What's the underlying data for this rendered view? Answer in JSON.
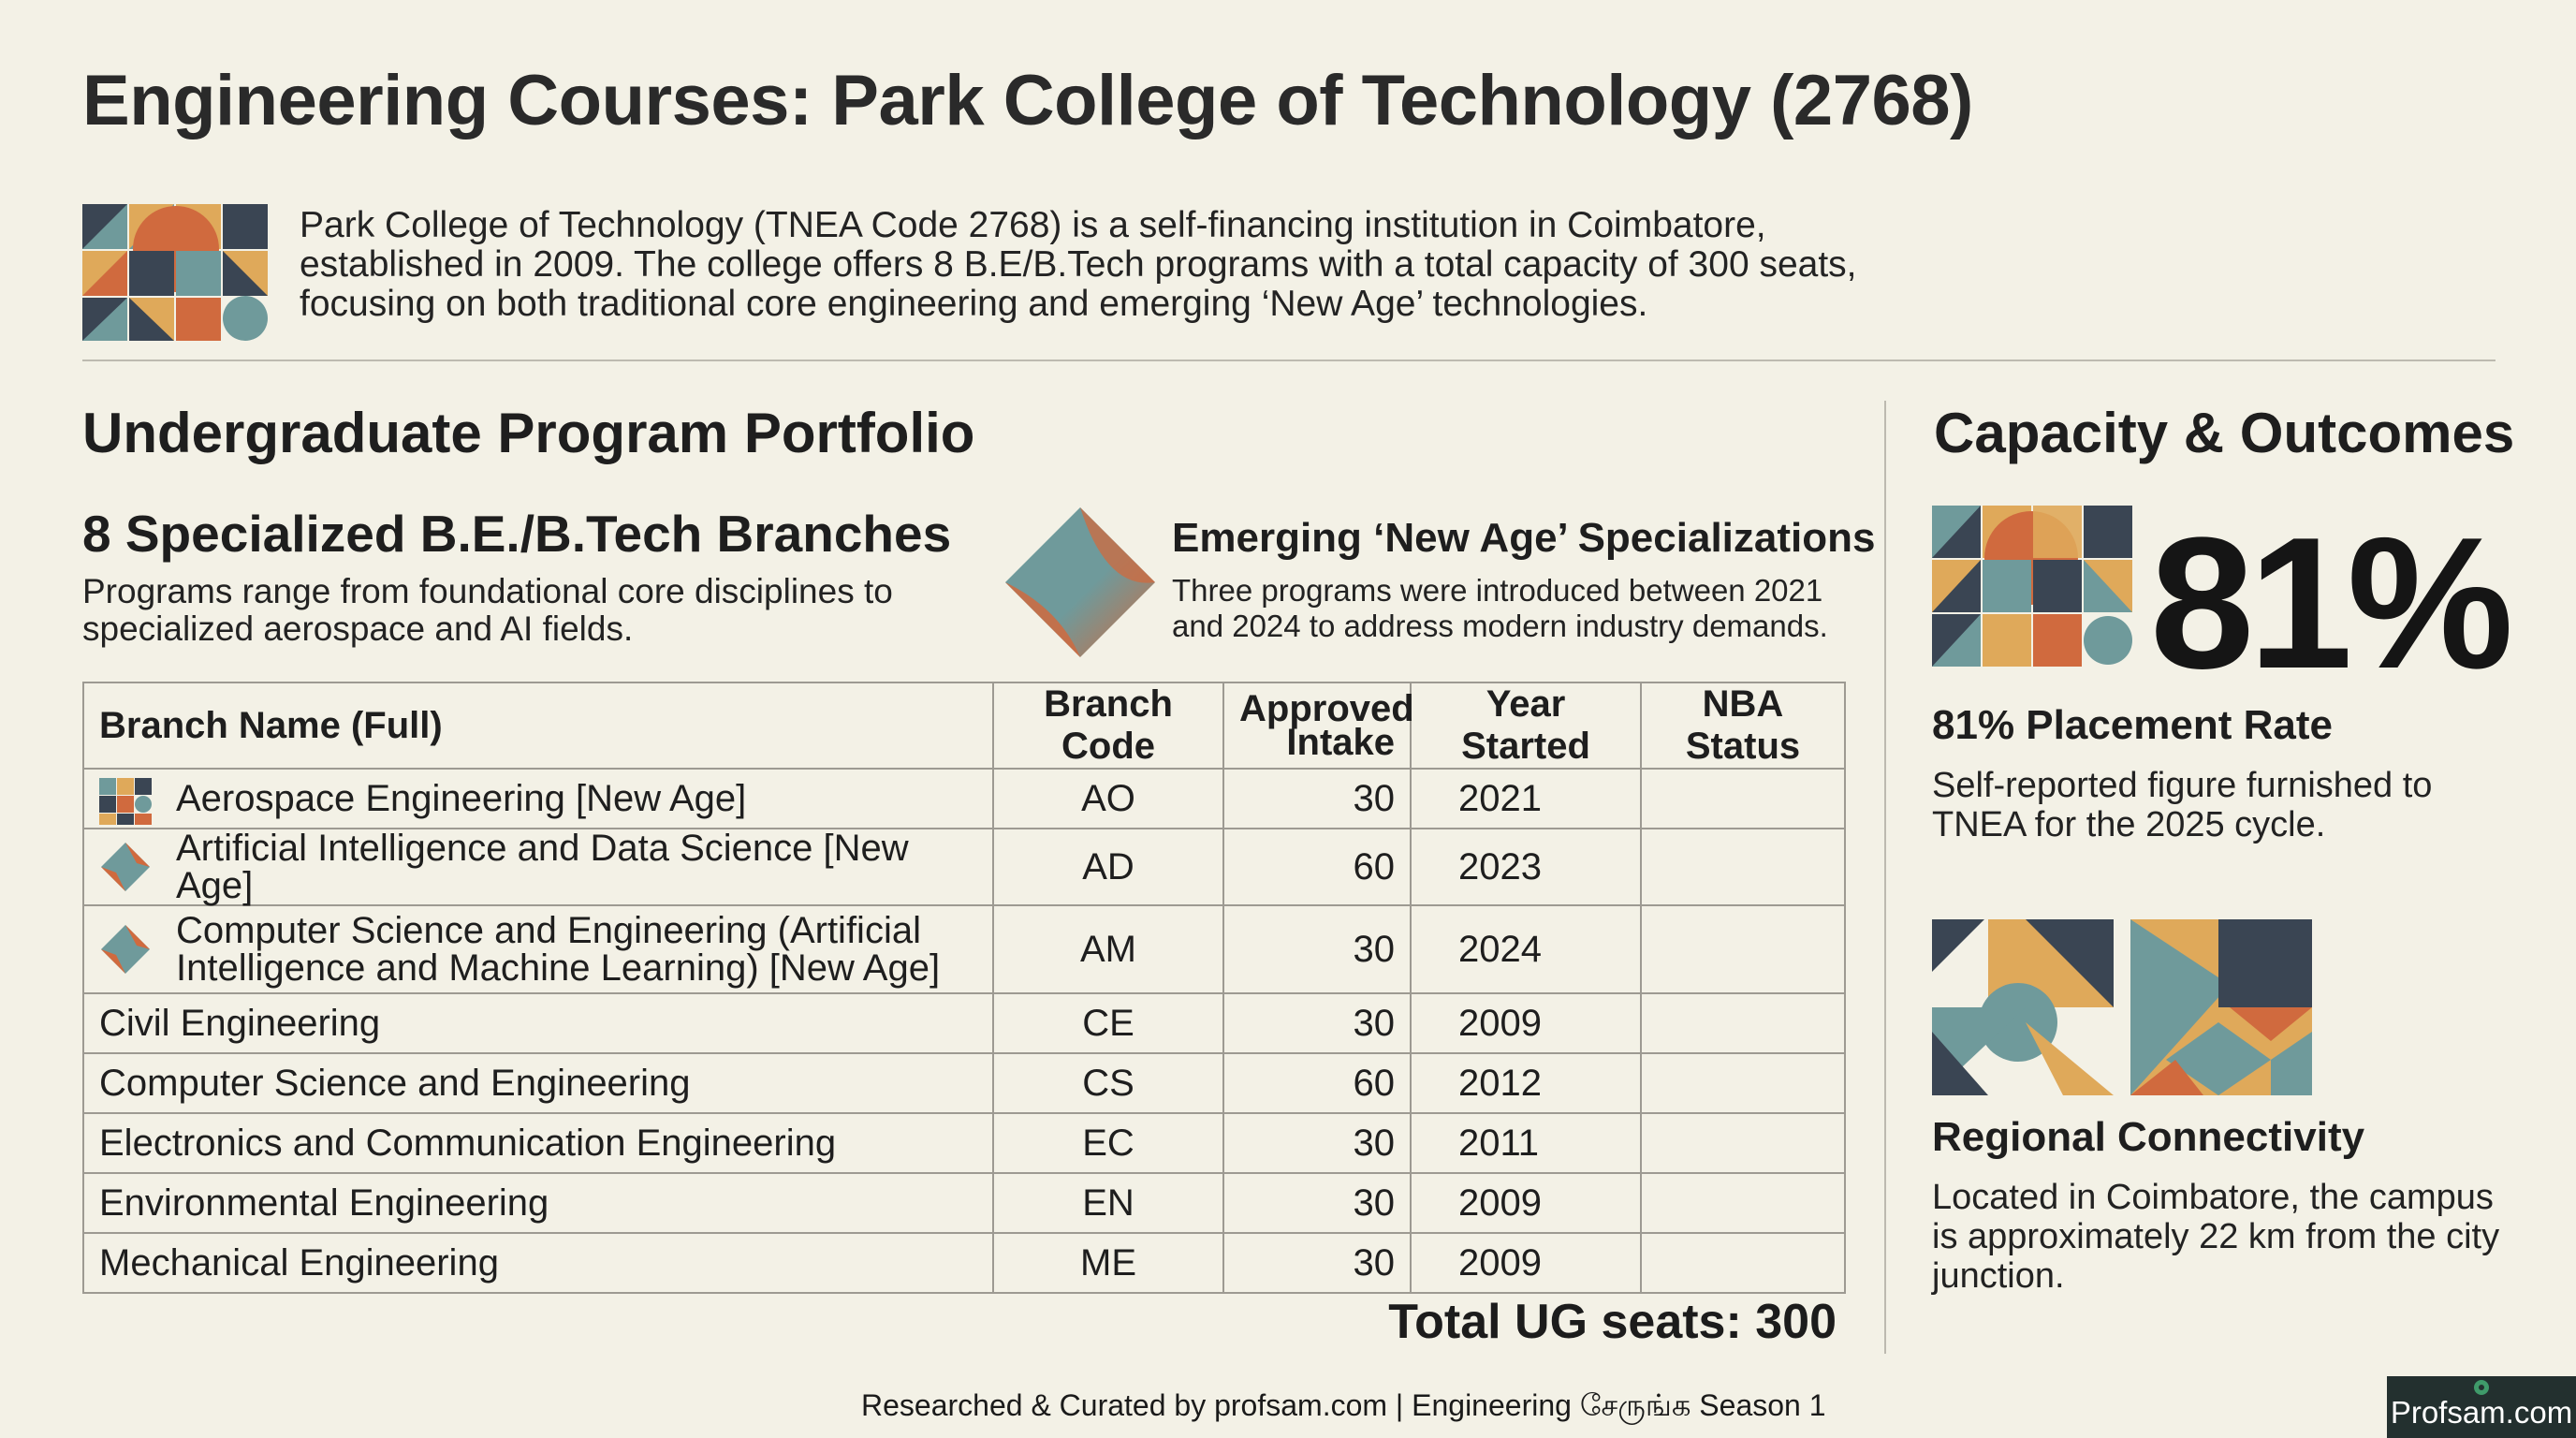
{
  "title": "Engineering Courses: Park College of Technology (2768)",
  "intro": "Park College of Technology (TNEA Code 2768) is a self-financing institution in Coimbatore, established in 2009. The college offers 8 B.E/B.Tech programs with a total capacity of 300 seats, focusing on both traditional core engineering and emerging ‘New Age’ technologies.",
  "left": {
    "section_title": "Undergraduate Program Portfolio",
    "branches_heading": "8 Specialized B.E./B.Tech Branches",
    "branches_desc": "Programs range from foundational core disciplines to specialized aerospace and AI fields.",
    "new_age_heading": "Emerging ‘New Age’ Specializations",
    "new_age_desc": "Three programs were introduced between 2021 and 2024 to address modern industry demands."
  },
  "table": {
    "headers": {
      "name": "Branch Name (Full)",
      "code": "Branch Code",
      "intake": "Approved Intake",
      "year": "Year Started",
      "nba": "NBA Status"
    },
    "rows": [
      {
        "name": "Aerospace Engineering [New Age]",
        "code": "AO",
        "intake": "30",
        "year": "2021",
        "nba": "",
        "icon": "geometric-mosaic-icon"
      },
      {
        "name": "Artificial Intelligence and Data Science [New Age]",
        "code": "AD",
        "intake": "60",
        "year": "2023",
        "nba": "",
        "icon": "diamond-icon"
      },
      {
        "name": "Computer Science and Engineering (Artificial Intelligence and Machine Learning) [New Age]",
        "code": "AM",
        "intake": "30",
        "year": "2024",
        "nba": "",
        "icon": "diamond-icon"
      },
      {
        "name": "Civil Engineering",
        "code": "CE",
        "intake": "30",
        "year": "2009",
        "nba": ""
      },
      {
        "name": "Computer Science and Engineering",
        "code": "CS",
        "intake": "60",
        "year": "2012",
        "nba": ""
      },
      {
        "name": "Electronics and Communication Engineering",
        "code": "EC",
        "intake": "30",
        "year": "2011",
        "nba": ""
      },
      {
        "name": "Environmental Engineering",
        "code": "EN",
        "intake": "30",
        "year": "2009",
        "nba": ""
      },
      {
        "name": "Mechanical Engineering",
        "code": "ME",
        "intake": "30",
        "year": "2009",
        "nba": ""
      }
    ],
    "total": "Total UG seats: 300"
  },
  "right": {
    "section_title": "Capacity & Outcomes",
    "big_stat": "81%",
    "placement_heading": "81% Placement Rate",
    "placement_desc": "Self-reported figure furnished to TNEA for the 2025 cycle.",
    "regional_heading": "Regional Connectivity",
    "regional_desc": "Located in Coimbatore, the campus is approximately 22 km from the city junction."
  },
  "footer": "Researched & Curated by profsam.com | Engineering சேருங்க Season 1",
  "badge": "Profsam.com",
  "colors": {
    "background": "#f3f1e6",
    "teal": "#6f9a9b",
    "navy": "#3a4553",
    "mustard": "#dfa95a",
    "rust": "#d06a3e"
  }
}
